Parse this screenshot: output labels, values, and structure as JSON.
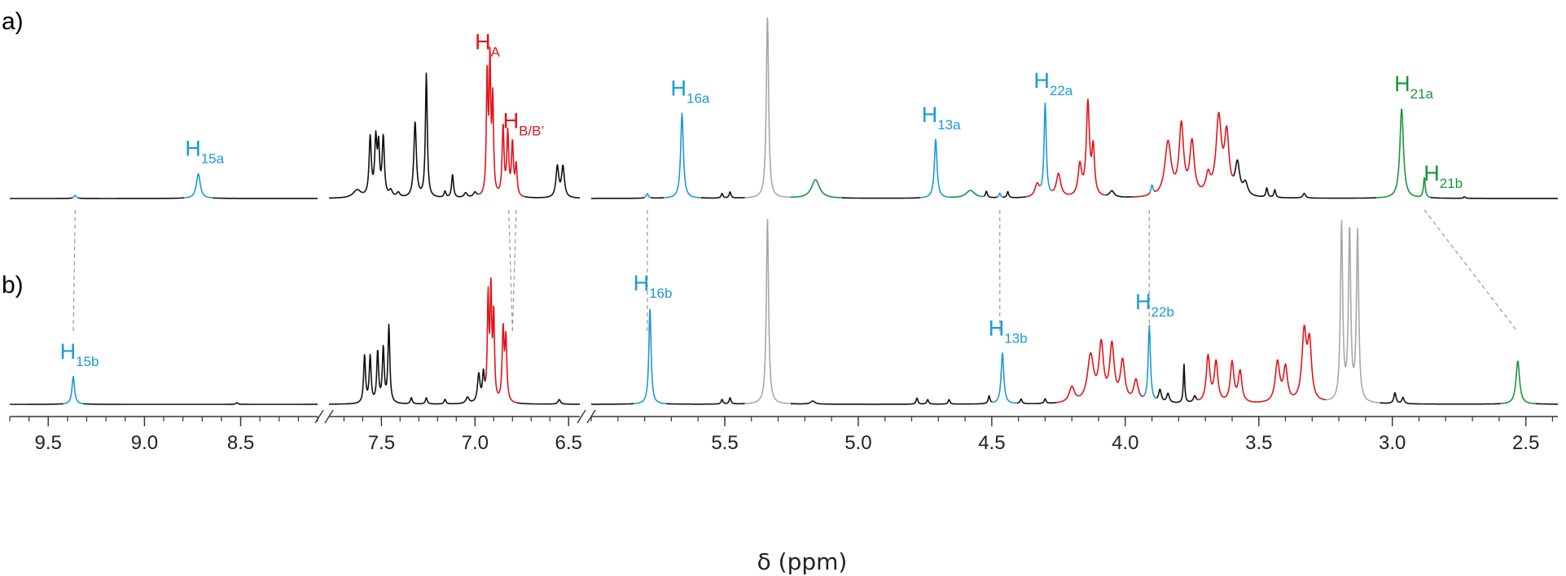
{
  "chart_data": {
    "type": "line",
    "panels": [
      "a)",
      "b)"
    ],
    "xlabel": "δ (ppm)",
    "axis_segments": [
      {
        "range": [
          9.7,
          8.1
        ],
        "ticks": [
          "9.5",
          "9.0",
          "8.5"
        ],
        "tick_values": [
          9.5,
          9.0,
          8.5
        ]
      },
      {
        "range": [
          7.78,
          6.44
        ],
        "ticks": [
          "7.5",
          "7.0",
          "6.5"
        ],
        "tick_values": [
          7.5,
          7.0,
          6.5
        ]
      },
      {
        "range": [
          6.0,
          2.38
        ],
        "ticks": [
          "5.5",
          "5.0",
          "4.5",
          "4.0",
          "3.5",
          "3.0",
          "2.5"
        ],
        "tick_values": [
          5.5,
          5.0,
          4.5,
          4.0,
          3.5,
          3.0,
          2.5
        ]
      }
    ],
    "colors": {
      "blue": "#1a9ad7",
      "red": "#e3141b",
      "green": "#16963a",
      "grey": "#a8a8a8",
      "black": "#111111"
    },
    "spectra": [
      {
        "panel": "a)",
        "peaks": [
          {
            "ppm": 9.36,
            "h": 0.02,
            "w": 0.008,
            "c": "blue"
          },
          {
            "ppm": 8.72,
            "h": 0.16,
            "w": 0.012,
            "c": "blue"
          },
          {
            "ppm": 7.63,
            "h": 0.05,
            "w": 0.025,
            "c": "black"
          },
          {
            "ppm": 7.56,
            "h": 0.38,
            "w": 0.007,
            "c": "black"
          },
          {
            "ppm": 7.53,
            "h": 0.36,
            "w": 0.007,
            "c": "black"
          },
          {
            "ppm": 7.515,
            "h": 0.3,
            "w": 0.006,
            "c": "black"
          },
          {
            "ppm": 7.49,
            "h": 0.38,
            "w": 0.007,
            "c": "black"
          },
          {
            "ppm": 7.45,
            "h": 0.04,
            "w": 0.01,
            "c": "black"
          },
          {
            "ppm": 7.41,
            "h": 0.03,
            "w": 0.01,
            "c": "black"
          },
          {
            "ppm": 7.32,
            "h": 0.49,
            "w": 0.008,
            "c": "black"
          },
          {
            "ppm": 7.26,
            "h": 0.8,
            "w": 0.006,
            "c": "black"
          },
          {
            "ppm": 7.16,
            "h": 0.04,
            "w": 0.006,
            "c": "black"
          },
          {
            "ppm": 7.12,
            "h": 0.15,
            "w": 0.006,
            "c": "black"
          },
          {
            "ppm": 7.05,
            "h": 0.03,
            "w": 0.01,
            "c": "black"
          },
          {
            "ppm": 7.0,
            "h": 0.03,
            "w": 0.01,
            "c": "black"
          },
          {
            "ppm": 6.935,
            "h": 0.78,
            "w": 0.005,
            "c": "red"
          },
          {
            "ppm": 6.92,
            "h": 0.85,
            "w": 0.005,
            "c": "red"
          },
          {
            "ppm": 6.905,
            "h": 0.6,
            "w": 0.005,
            "c": "red"
          },
          {
            "ppm": 6.85,
            "h": 0.45,
            "w": 0.006,
            "c": "red"
          },
          {
            "ppm": 6.825,
            "h": 0.4,
            "w": 0.006,
            "c": "red"
          },
          {
            "ppm": 6.8,
            "h": 0.34,
            "w": 0.006,
            "c": "red"
          },
          {
            "ppm": 6.78,
            "h": 0.2,
            "w": 0.006,
            "c": "red"
          },
          {
            "ppm": 6.56,
            "h": 0.2,
            "w": 0.009,
            "c": "black"
          },
          {
            "ppm": 6.53,
            "h": 0.2,
            "w": 0.009,
            "c": "black"
          },
          {
            "ppm": 5.79,
            "h": 0.03,
            "w": 0.005,
            "c": "blue"
          },
          {
            "ppm": 5.66,
            "h": 0.55,
            "w": 0.006,
            "c": "blue"
          },
          {
            "ppm": 5.51,
            "h": 0.03,
            "w": 0.004,
            "c": "black"
          },
          {
            "ppm": 5.48,
            "h": 0.04,
            "w": 0.004,
            "c": "black"
          },
          {
            "ppm": 5.34,
            "h": 1.2,
            "w": 0.005,
            "c": "grey"
          },
          {
            "ppm": 5.16,
            "h": 0.12,
            "w": 0.018,
            "c": "green"
          },
          {
            "ppm": 4.71,
            "h": 0.38,
            "w": 0.006,
            "c": "blue"
          },
          {
            "ppm": 4.58,
            "h": 0.05,
            "w": 0.02,
            "c": "green"
          },
          {
            "ppm": 4.52,
            "h": 0.04,
            "w": 0.004,
            "c": "black"
          },
          {
            "ppm": 4.47,
            "h": 0.03,
            "w": 0.004,
            "c": "blue"
          },
          {
            "ppm": 4.44,
            "h": 0.04,
            "w": 0.004,
            "c": "black"
          },
          {
            "ppm": 4.33,
            "h": 0.08,
            "w": 0.01,
            "c": "red"
          },
          {
            "ppm": 4.3,
            "h": 0.6,
            "w": 0.005,
            "c": "blue"
          },
          {
            "ppm": 4.25,
            "h": 0.15,
            "w": 0.01,
            "c": "red"
          },
          {
            "ppm": 4.17,
            "h": 0.2,
            "w": 0.008,
            "c": "red"
          },
          {
            "ppm": 4.14,
            "h": 0.6,
            "w": 0.007,
            "c": "red"
          },
          {
            "ppm": 4.12,
            "h": 0.3,
            "w": 0.006,
            "c": "red"
          },
          {
            "ppm": 4.05,
            "h": 0.04,
            "w": 0.01,
            "c": "black"
          },
          {
            "ppm": 3.9,
            "h": 0.06,
            "w": 0.005,
            "c": "blue"
          },
          {
            "ppm": 3.84,
            "h": 0.35,
            "w": 0.014,
            "c": "red"
          },
          {
            "ppm": 3.79,
            "h": 0.45,
            "w": 0.01,
            "c": "red"
          },
          {
            "ppm": 3.75,
            "h": 0.34,
            "w": 0.01,
            "c": "red"
          },
          {
            "ppm": 3.69,
            "h": 0.12,
            "w": 0.01,
            "c": "red"
          },
          {
            "ppm": 3.65,
            "h": 0.5,
            "w": 0.012,
            "c": "red"
          },
          {
            "ppm": 3.62,
            "h": 0.38,
            "w": 0.01,
            "c": "red"
          },
          {
            "ppm": 3.58,
            "h": 0.2,
            "w": 0.01,
            "c": "black"
          },
          {
            "ppm": 3.55,
            "h": 0.08,
            "w": 0.01,
            "c": "black"
          },
          {
            "ppm": 3.47,
            "h": 0.06,
            "w": 0.004,
            "c": "black"
          },
          {
            "ppm": 3.44,
            "h": 0.05,
            "w": 0.004,
            "c": "black"
          },
          {
            "ppm": 3.33,
            "h": 0.03,
            "w": 0.006,
            "c": "black"
          },
          {
            "ppm": 2.965,
            "h": 0.58,
            "w": 0.008,
            "c": "green"
          },
          {
            "ppm": 2.88,
            "h": 0.13,
            "w": 0.004,
            "c": "green"
          },
          {
            "ppm": 2.73,
            "h": 0.01,
            "w": 0.004,
            "c": "black"
          }
        ],
        "labels": [
          {
            "sym": "H",
            "sub": "15a",
            "ppm": 8.73,
            "c": "blue"
          },
          {
            "sym": "H",
            "sub": "A",
            "ppm": 6.94,
            "c": "red"
          },
          {
            "sym": "H",
            "sub": "B/B’",
            "ppm": 6.79,
            "c": "red"
          },
          {
            "sym": "H",
            "sub": "16a",
            "ppm": 5.66,
            "c": "blue"
          },
          {
            "sym": "H",
            "sub": "13a",
            "ppm": 4.72,
            "c": "blue"
          },
          {
            "sym": "H",
            "sub": "22a",
            "ppm": 4.3,
            "c": "blue"
          },
          {
            "sym": "H",
            "sub": "21a",
            "ppm": 2.95,
            "c": "green"
          },
          {
            "sym": "H",
            "sub": "21b",
            "ppm": 2.84,
            "c": "green"
          }
        ]
      },
      {
        "panel": "b)",
        "peaks": [
          {
            "ppm": 9.37,
            "h": 0.18,
            "w": 0.008,
            "c": "blue"
          },
          {
            "ppm": 8.52,
            "h": 0.01,
            "w": 0.006,
            "c": "black"
          },
          {
            "ppm": 7.59,
            "h": 0.31,
            "w": 0.006,
            "c": "black"
          },
          {
            "ppm": 7.56,
            "h": 0.3,
            "w": 0.006,
            "c": "black"
          },
          {
            "ppm": 7.52,
            "h": 0.33,
            "w": 0.006,
            "c": "black"
          },
          {
            "ppm": 7.49,
            "h": 0.35,
            "w": 0.006,
            "c": "black"
          },
          {
            "ppm": 7.46,
            "h": 0.5,
            "w": 0.006,
            "c": "black"
          },
          {
            "ppm": 7.34,
            "h": 0.04,
            "w": 0.006,
            "c": "black"
          },
          {
            "ppm": 7.26,
            "h": 0.04,
            "w": 0.006,
            "c": "black"
          },
          {
            "ppm": 7.16,
            "h": 0.03,
            "w": 0.006,
            "c": "black"
          },
          {
            "ppm": 7.04,
            "h": 0.04,
            "w": 0.01,
            "c": "black"
          },
          {
            "ppm": 6.98,
            "h": 0.18,
            "w": 0.008,
            "c": "black"
          },
          {
            "ppm": 6.955,
            "h": 0.17,
            "w": 0.006,
            "c": "black"
          },
          {
            "ppm": 6.93,
            "h": 0.66,
            "w": 0.005,
            "c": "red"
          },
          {
            "ppm": 6.915,
            "h": 0.7,
            "w": 0.005,
            "c": "red"
          },
          {
            "ppm": 6.9,
            "h": 0.55,
            "w": 0.005,
            "c": "red"
          },
          {
            "ppm": 6.85,
            "h": 0.46,
            "w": 0.006,
            "c": "red"
          },
          {
            "ppm": 6.835,
            "h": 0.4,
            "w": 0.006,
            "c": "red"
          },
          {
            "ppm": 6.55,
            "h": 0.03,
            "w": 0.008,
            "c": "black"
          },
          {
            "ppm": 5.78,
            "h": 0.62,
            "w": 0.005,
            "c": "blue"
          },
          {
            "ppm": 5.51,
            "h": 0.03,
            "w": 0.004,
            "c": "black"
          },
          {
            "ppm": 5.48,
            "h": 0.04,
            "w": 0.004,
            "c": "black"
          },
          {
            "ppm": 5.34,
            "h": 1.2,
            "w": 0.005,
            "c": "grey"
          },
          {
            "ppm": 5.17,
            "h": 0.02,
            "w": 0.01,
            "c": "black"
          },
          {
            "ppm": 4.78,
            "h": 0.04,
            "w": 0.004,
            "c": "black"
          },
          {
            "ppm": 4.74,
            "h": 0.03,
            "w": 0.004,
            "c": "black"
          },
          {
            "ppm": 4.66,
            "h": 0.03,
            "w": 0.004,
            "c": "black"
          },
          {
            "ppm": 4.51,
            "h": 0.05,
            "w": 0.004,
            "c": "black"
          },
          {
            "ppm": 4.46,
            "h": 0.33,
            "w": 0.006,
            "c": "blue"
          },
          {
            "ppm": 4.39,
            "h": 0.03,
            "w": 0.004,
            "c": "black"
          },
          {
            "ppm": 4.3,
            "h": 0.03,
            "w": 0.004,
            "c": "black"
          },
          {
            "ppm": 4.2,
            "h": 0.1,
            "w": 0.012,
            "c": "red"
          },
          {
            "ppm": 4.13,
            "h": 0.3,
            "w": 0.014,
            "c": "red"
          },
          {
            "ppm": 4.09,
            "h": 0.36,
            "w": 0.01,
            "c": "red"
          },
          {
            "ppm": 4.05,
            "h": 0.36,
            "w": 0.01,
            "c": "red"
          },
          {
            "ppm": 4.01,
            "h": 0.26,
            "w": 0.01,
            "c": "red"
          },
          {
            "ppm": 3.96,
            "h": 0.14,
            "w": 0.01,
            "c": "red"
          },
          {
            "ppm": 3.91,
            "h": 0.5,
            "w": 0.005,
            "c": "blue"
          },
          {
            "ppm": 3.87,
            "h": 0.08,
            "w": 0.006,
            "c": "black"
          },
          {
            "ppm": 3.84,
            "h": 0.06,
            "w": 0.006,
            "c": "black"
          },
          {
            "ppm": 3.78,
            "h": 0.25,
            "w": 0.003,
            "c": "black"
          },
          {
            "ppm": 3.74,
            "h": 0.04,
            "w": 0.006,
            "c": "black"
          },
          {
            "ppm": 3.69,
            "h": 0.3,
            "w": 0.008,
            "c": "red"
          },
          {
            "ppm": 3.66,
            "h": 0.26,
            "w": 0.008,
            "c": "red"
          },
          {
            "ppm": 3.6,
            "h": 0.26,
            "w": 0.008,
            "c": "red"
          },
          {
            "ppm": 3.57,
            "h": 0.2,
            "w": 0.008,
            "c": "red"
          },
          {
            "ppm": 3.43,
            "h": 0.26,
            "w": 0.01,
            "c": "red"
          },
          {
            "ppm": 3.4,
            "h": 0.22,
            "w": 0.009,
            "c": "red"
          },
          {
            "ppm": 3.33,
            "h": 0.44,
            "w": 0.01,
            "c": "red"
          },
          {
            "ppm": 3.31,
            "h": 0.36,
            "w": 0.009,
            "c": "red"
          },
          {
            "ppm": 3.19,
            "h": 1.15,
            "w": 0.005,
            "c": "grey"
          },
          {
            "ppm": 3.16,
            "h": 1.1,
            "w": 0.005,
            "c": "grey"
          },
          {
            "ppm": 3.13,
            "h": 1.1,
            "w": 0.005,
            "c": "grey"
          },
          {
            "ppm": 2.99,
            "h": 0.07,
            "w": 0.005,
            "c": "black"
          },
          {
            "ppm": 2.96,
            "h": 0.04,
            "w": 0.005,
            "c": "black"
          },
          {
            "ppm": 2.53,
            "h": 0.28,
            "w": 0.008,
            "c": "green"
          }
        ],
        "labels": [
          {
            "sym": "H",
            "sub": "15b",
            "ppm": 9.38,
            "c": "blue"
          },
          {
            "sym": "H",
            "sub": "16b",
            "ppm": 5.8,
            "c": "blue"
          },
          {
            "sym": "H",
            "sub": "13b",
            "ppm": 4.47,
            "c": "blue"
          },
          {
            "sym": "H",
            "sub": "22b",
            "ppm": 3.92,
            "c": "blue"
          }
        ]
      }
    ],
    "correlations": [
      {
        "from": 9.36,
        "to": 9.37
      },
      {
        "from": 6.82,
        "to": 6.8
      },
      {
        "from": 6.78,
        "to": 6.8
      },
      {
        "from": 5.79,
        "to": 5.79
      },
      {
        "from": 4.47,
        "to": 4.47
      },
      {
        "from": 3.91,
        "to": 3.91
      },
      {
        "from": 2.88,
        "to": 2.53
      }
    ]
  }
}
